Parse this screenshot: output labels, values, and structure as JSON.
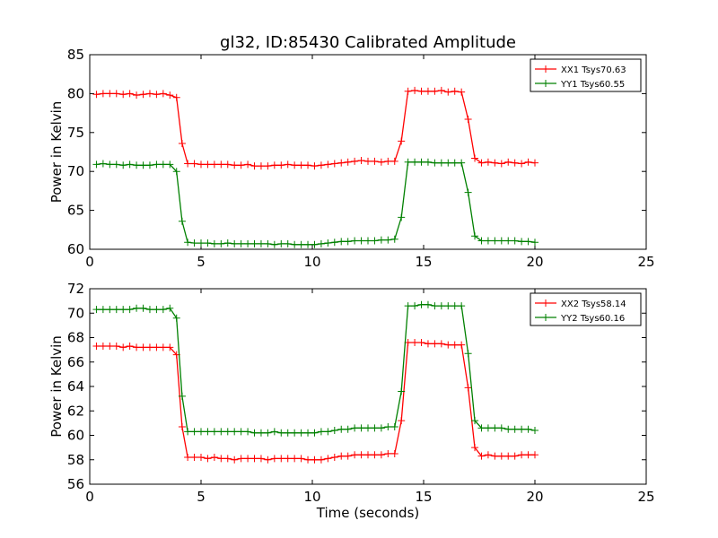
{
  "title": "gl32, ID:85430 Calibrated Amplitude",
  "colors": {
    "red": "#ff0000",
    "green": "#008000",
    "axis": "#000000",
    "background": "#ffffff"
  },
  "chart_data": [
    {
      "type": "line",
      "title": "gl32, ID:85430 Calibrated Amplitude",
      "xlabel": "",
      "ylabel": "Power in Kelvin",
      "xlim": [
        0,
        25
      ],
      "ylim": [
        60,
        85
      ],
      "xticks": [
        0,
        5,
        10,
        15,
        20,
        25
      ],
      "yticks": [
        60,
        65,
        70,
        75,
        80,
        85
      ],
      "grid": false,
      "legend_position": "top-right",
      "series": [
        {
          "name": "XX1 Tsys70.63",
          "color": "#ff0000",
          "marker": "+",
          "x": [
            0.3,
            0.6,
            0.9,
            1.2,
            1.5,
            1.8,
            2.1,
            2.4,
            2.7,
            3.0,
            3.3,
            3.6,
            3.9,
            4.15,
            4.4,
            4.7,
            5.0,
            5.3,
            5.6,
            5.9,
            6.2,
            6.5,
            6.8,
            7.1,
            7.4,
            7.7,
            8.0,
            8.3,
            8.6,
            8.9,
            9.2,
            9.5,
            9.8,
            10.1,
            10.4,
            10.7,
            11.0,
            11.3,
            11.6,
            11.9,
            12.2,
            12.5,
            12.8,
            13.1,
            13.4,
            13.7,
            14.0,
            14.3,
            14.6,
            14.9,
            15.2,
            15.5,
            15.8,
            16.1,
            16.4,
            16.7,
            17.0,
            17.3,
            17.6,
            17.9,
            18.2,
            18.5,
            18.8,
            19.1,
            19.4,
            19.7,
            20.0
          ],
          "values": [
            79.9,
            80.0,
            80.0,
            80.0,
            79.9,
            80.0,
            79.8,
            79.9,
            80.0,
            79.9,
            80.0,
            79.8,
            79.5,
            73.6,
            71.0,
            71.0,
            70.9,
            70.9,
            70.9,
            70.9,
            70.9,
            70.8,
            70.8,
            70.9,
            70.7,
            70.7,
            70.7,
            70.8,
            70.8,
            70.9,
            70.8,
            70.8,
            70.8,
            70.7,
            70.8,
            70.9,
            71.0,
            71.1,
            71.2,
            71.3,
            71.4,
            71.3,
            71.3,
            71.2,
            71.3,
            71.3,
            73.9,
            80.3,
            80.4,
            80.3,
            80.3,
            80.3,
            80.4,
            80.2,
            80.3,
            80.2,
            76.7,
            71.7,
            71.1,
            71.2,
            71.1,
            71.0,
            71.2,
            71.1,
            71.0,
            71.2,
            71.1
          ]
        },
        {
          "name": "YY1 Tsys60.55",
          "color": "#008000",
          "marker": "+",
          "x": [
            0.3,
            0.6,
            0.9,
            1.2,
            1.5,
            1.8,
            2.1,
            2.4,
            2.7,
            3.0,
            3.3,
            3.6,
            3.9,
            4.15,
            4.4,
            4.7,
            5.0,
            5.3,
            5.6,
            5.9,
            6.2,
            6.5,
            6.8,
            7.1,
            7.4,
            7.7,
            8.0,
            8.3,
            8.6,
            8.9,
            9.2,
            9.5,
            9.8,
            10.1,
            10.4,
            10.7,
            11.0,
            11.3,
            11.6,
            11.9,
            12.2,
            12.5,
            12.8,
            13.1,
            13.4,
            13.7,
            14.0,
            14.3,
            14.6,
            14.9,
            15.2,
            15.5,
            15.8,
            16.1,
            16.4,
            16.7,
            17.0,
            17.3,
            17.6,
            17.9,
            18.2,
            18.5,
            18.8,
            19.1,
            19.4,
            19.7,
            20.0
          ],
          "values": [
            70.9,
            71.0,
            70.9,
            70.9,
            70.8,
            70.9,
            70.8,
            70.8,
            70.8,
            70.9,
            70.9,
            70.9,
            70.0,
            63.6,
            60.9,
            60.8,
            60.8,
            60.8,
            60.7,
            60.7,
            60.8,
            60.7,
            60.7,
            60.7,
            60.7,
            60.7,
            60.7,
            60.6,
            60.7,
            60.7,
            60.6,
            60.6,
            60.6,
            60.6,
            60.7,
            60.8,
            60.9,
            61.0,
            61.0,
            61.1,
            61.1,
            61.1,
            61.1,
            61.2,
            61.2,
            61.3,
            64.1,
            71.2,
            71.2,
            71.2,
            71.2,
            71.1,
            71.1,
            71.1,
            71.1,
            71.1,
            67.3,
            61.7,
            61.1,
            61.1,
            61.1,
            61.1,
            61.1,
            61.1,
            61.0,
            61.0,
            60.9
          ]
        }
      ]
    },
    {
      "type": "line",
      "title": "",
      "xlabel": "Time (seconds)",
      "ylabel": "Power in Kelvin",
      "xlim": [
        0,
        25
      ],
      "ylim": [
        56,
        72
      ],
      "xticks": [
        0,
        5,
        10,
        15,
        20,
        25
      ],
      "yticks": [
        56,
        58,
        60,
        62,
        64,
        66,
        68,
        70,
        72
      ],
      "grid": false,
      "legend_position": "top-right",
      "series": [
        {
          "name": "XX2 Tsys58.14",
          "color": "#ff0000",
          "marker": "+",
          "x": [
            0.3,
            0.6,
            0.9,
            1.2,
            1.5,
            1.8,
            2.1,
            2.4,
            2.7,
            3.0,
            3.3,
            3.6,
            3.9,
            4.15,
            4.4,
            4.7,
            5.0,
            5.3,
            5.6,
            5.9,
            6.2,
            6.5,
            6.8,
            7.1,
            7.4,
            7.7,
            8.0,
            8.3,
            8.6,
            8.9,
            9.2,
            9.5,
            9.8,
            10.1,
            10.4,
            10.7,
            11.0,
            11.3,
            11.6,
            11.9,
            12.2,
            12.5,
            12.8,
            13.1,
            13.4,
            13.7,
            14.0,
            14.3,
            14.6,
            14.9,
            15.2,
            15.5,
            15.8,
            16.1,
            16.4,
            16.7,
            17.0,
            17.3,
            17.6,
            17.9,
            18.2,
            18.5,
            18.8,
            19.1,
            19.4,
            19.7,
            20.0
          ],
          "values": [
            67.3,
            67.3,
            67.3,
            67.3,
            67.2,
            67.3,
            67.2,
            67.2,
            67.2,
            67.2,
            67.2,
            67.2,
            66.6,
            60.7,
            58.2,
            58.2,
            58.2,
            58.1,
            58.2,
            58.1,
            58.1,
            58.0,
            58.1,
            58.1,
            58.1,
            58.1,
            58.0,
            58.1,
            58.1,
            58.1,
            58.1,
            58.1,
            58.0,
            58.0,
            58.0,
            58.1,
            58.2,
            58.3,
            58.3,
            58.4,
            58.4,
            58.4,
            58.4,
            58.4,
            58.5,
            58.5,
            61.2,
            67.6,
            67.6,
            67.6,
            67.5,
            67.5,
            67.5,
            67.4,
            67.4,
            67.4,
            63.9,
            59.0,
            58.3,
            58.4,
            58.3,
            58.3,
            58.3,
            58.3,
            58.4,
            58.4,
            58.4
          ]
        },
        {
          "name": "YY2 Tsys60.16",
          "color": "#008000",
          "marker": "+",
          "x": [
            0.3,
            0.6,
            0.9,
            1.2,
            1.5,
            1.8,
            2.1,
            2.4,
            2.7,
            3.0,
            3.3,
            3.6,
            3.9,
            4.15,
            4.4,
            4.7,
            5.0,
            5.3,
            5.6,
            5.9,
            6.2,
            6.5,
            6.8,
            7.1,
            7.4,
            7.7,
            8.0,
            8.3,
            8.6,
            8.9,
            9.2,
            9.5,
            9.8,
            10.1,
            10.4,
            10.7,
            11.0,
            11.3,
            11.6,
            11.9,
            12.2,
            12.5,
            12.8,
            13.1,
            13.4,
            13.7,
            14.0,
            14.3,
            14.6,
            14.9,
            15.2,
            15.5,
            15.8,
            16.1,
            16.4,
            16.7,
            17.0,
            17.3,
            17.6,
            17.9,
            18.2,
            18.5,
            18.8,
            19.1,
            19.4,
            19.7,
            20.0
          ],
          "values": [
            70.3,
            70.3,
            70.3,
            70.3,
            70.3,
            70.3,
            70.4,
            70.4,
            70.3,
            70.3,
            70.3,
            70.4,
            69.6,
            63.2,
            60.3,
            60.3,
            60.3,
            60.3,
            60.3,
            60.3,
            60.3,
            60.3,
            60.3,
            60.3,
            60.2,
            60.2,
            60.2,
            60.3,
            60.2,
            60.2,
            60.2,
            60.2,
            60.2,
            60.2,
            60.3,
            60.3,
            60.4,
            60.5,
            60.5,
            60.6,
            60.6,
            60.6,
            60.6,
            60.6,
            60.7,
            60.7,
            63.6,
            70.6,
            70.6,
            70.7,
            70.7,
            70.6,
            70.6,
            70.6,
            70.6,
            70.6,
            66.7,
            61.2,
            60.6,
            60.6,
            60.6,
            60.6,
            60.5,
            60.5,
            60.5,
            60.5,
            60.4
          ]
        }
      ]
    }
  ]
}
